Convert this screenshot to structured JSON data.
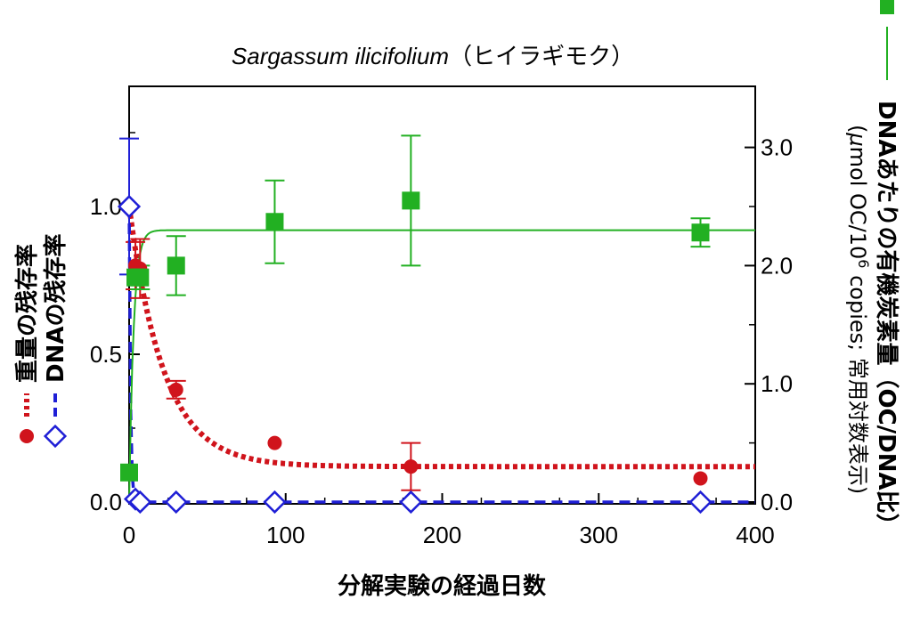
{
  "colors": {
    "weight": "#d0141c",
    "dna": "#1f1fd6",
    "oc": "#22b022",
    "axis": "#000000"
  },
  "chart_data": {
    "type": "scatter",
    "title_latin": "Sargassum ilicifolium",
    "title_jp": "（ヒイラギモク）",
    "xlabel": "分解実験の経過日数",
    "xlim": [
      0,
      400
    ],
    "x_ticks": [
      "0",
      "100",
      "200",
      "300",
      "400"
    ],
    "y_left": {
      "lim": [
        0,
        1.4
      ],
      "ticks": [
        "0.0",
        "0.5",
        "1.0"
      ],
      "labels": [
        "重量の残存率",
        "DNAの残存率"
      ]
    },
    "y_right": {
      "lim": [
        0,
        3.5
      ],
      "ticks": [
        "0.0",
        "1.0",
        "2.0",
        "3.0"
      ],
      "label_main": "DNAあたりの有機炭素量（OC/DNA比）",
      "label_sub_a": "(",
      "label_sub_mu": "μ",
      "label_sub_b": "mol OC/10",
      "label_sub_sup": "6",
      "label_sub_c": " copies; 常用対数表示)"
    },
    "series": [
      {
        "name": "重量の残存率",
        "marker": "circle",
        "axis": "left",
        "fit": "dotted",
        "x": [
          0,
          4,
          7,
          30,
          93,
          180,
          365
        ],
        "y": [
          1.0,
          0.8,
          0.79,
          0.38,
          0.2,
          0.12,
          0.08
        ],
        "err": [
          0.0,
          0.08,
          0.1,
          0.03,
          0.0,
          0.08,
          0.0
        ],
        "fit_params": {
          "plateau": 0.12,
          "amplitude": 0.88,
          "rate": 0.045
        }
      },
      {
        "name": "DNAの残存率",
        "marker": "diamond",
        "axis": "left",
        "fit": "dashed",
        "x": [
          0,
          4,
          7,
          30,
          93,
          180,
          365
        ],
        "y": [
          1.0,
          0.01,
          0.0,
          0.0,
          0.0,
          0.0,
          0.0
        ],
        "err": [
          0.23,
          0.0,
          0.0,
          0.0,
          0.0,
          0.0,
          0.0
        ],
        "fit_params": {
          "plateau": 0.0,
          "amplitude": 1.0,
          "rate": 1.2
        }
      },
      {
        "name": "DNAあたりの有機炭素量（OC/DNA比）",
        "marker": "square",
        "axis": "right",
        "fit": "solid",
        "x": [
          0,
          4,
          7,
          30,
          93,
          180,
          365
        ],
        "y": [
          0.25,
          1.9,
          1.9,
          2.0,
          2.37,
          2.55,
          2.28
        ],
        "err": [
          0.0,
          0.0,
          0.1,
          0.25,
          0.35,
          0.55,
          0.12
        ],
        "fit_params": {
          "plateau": 2.3,
          "amplitude": 2.3,
          "rate": 0.35
        }
      }
    ],
    "legend_position": "left",
    "grid": false
  }
}
